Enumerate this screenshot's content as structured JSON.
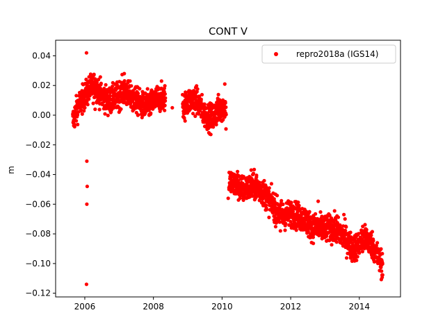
{
  "chart_data": {
    "type": "scatter",
    "title": "CONT V",
    "xlabel": "",
    "ylabel": "m",
    "xlim": [
      2005.15,
      2015.2
    ],
    "ylim": [
      -0.1225,
      0.0505
    ],
    "xticks": [
      2006,
      2008,
      2010,
      2012,
      2014
    ],
    "yticks": [
      0.04,
      0.02,
      0.0,
      -0.02,
      -0.04,
      -0.06,
      -0.08,
      -0.1,
      -0.12
    ],
    "ytick_labels": [
      "0.04",
      "0.02",
      "0.00",
      "−0.02",
      "−0.04",
      "−0.06",
      "−0.08",
      "−0.10",
      "−0.12"
    ],
    "grid": false,
    "legend_position": "top-right",
    "series": [
      {
        "name": "repro2018a (IGS14)",
        "color": "#ff0000",
        "marker": "circle",
        "trend": [
          [
            2005.65,
            -0.004
          ],
          [
            2005.8,
            0.006
          ],
          [
            2006.0,
            0.013
          ],
          [
            2006.15,
            0.018
          ],
          [
            2006.3,
            0.02
          ],
          [
            2006.5,
            0.013
          ],
          [
            2006.7,
            0.009
          ],
          [
            2006.9,
            0.012
          ],
          [
            2007.1,
            0.016
          ],
          [
            2007.3,
            0.013
          ],
          [
            2007.5,
            0.01
          ],
          [
            2007.7,
            0.006
          ],
          [
            2007.9,
            0.007
          ],
          [
            2008.1,
            0.011
          ],
          [
            2008.3,
            0.012
          ],
          [
            2008.9,
            0.006
          ],
          [
            2009.1,
            0.011
          ],
          [
            2009.3,
            0.009
          ],
          [
            2009.5,
            0.0
          ],
          [
            2009.7,
            -0.002
          ],
          [
            2009.9,
            0.004
          ],
          [
            2010.1,
            0.006
          ],
          [
            2010.2,
            -0.045
          ],
          [
            2010.4,
            -0.047
          ],
          [
            2010.6,
            -0.05
          ],
          [
            2010.8,
            -0.049
          ],
          [
            2011.0,
            -0.048
          ],
          [
            2011.2,
            -0.052
          ],
          [
            2011.4,
            -0.058
          ],
          [
            2011.6,
            -0.065
          ],
          [
            2011.8,
            -0.068
          ],
          [
            2012.0,
            -0.066
          ],
          [
            2012.2,
            -0.068
          ],
          [
            2012.4,
            -0.07
          ],
          [
            2012.6,
            -0.075
          ],
          [
            2012.8,
            -0.076
          ],
          [
            2013.0,
            -0.077
          ],
          [
            2013.2,
            -0.076
          ],
          [
            2013.4,
            -0.079
          ],
          [
            2013.6,
            -0.083
          ],
          [
            2013.8,
            -0.09
          ],
          [
            2014.0,
            -0.087
          ],
          [
            2014.2,
            -0.083
          ],
          [
            2014.4,
            -0.088
          ],
          [
            2014.55,
            -0.096
          ],
          [
            2014.68,
            -0.101
          ]
        ],
        "gaps": [
          [
            2008.35,
            2008.85
          ],
          [
            2010.12,
            2010.2
          ]
        ],
        "noise_amplitude": 0.0045,
        "samples_per_year": 280,
        "outliers": [
          [
            2006.05,
            0.042
          ],
          [
            2006.06,
            -0.031
          ],
          [
            2006.07,
            -0.048
          ],
          [
            2006.06,
            -0.06
          ],
          [
            2006.05,
            -0.114
          ],
          [
            2006.3,
            0.004
          ],
          [
            2007.0,
            0.002
          ],
          [
            2007.15,
            0.028
          ],
          [
            2007.4,
            0.003
          ],
          [
            2008.55,
            0.005
          ],
          [
            2008.9,
            -0.002
          ],
          [
            2009.2,
            0.016
          ],
          [
            2010.08,
            0.021
          ],
          [
            2010.18,
            -0.056
          ],
          [
            2010.45,
            -0.038
          ],
          [
            2010.85,
            -0.037
          ],
          [
            2011.3,
            -0.049
          ],
          [
            2011.7,
            -0.078
          ],
          [
            2012.8,
            -0.058
          ],
          [
            2013.35,
            -0.068
          ],
          [
            2013.55,
            -0.067
          ],
          [
            2013.95,
            -0.089
          ],
          [
            2014.1,
            -0.075
          ],
          [
            2014.2,
            -0.077
          ]
        ]
      }
    ]
  }
}
